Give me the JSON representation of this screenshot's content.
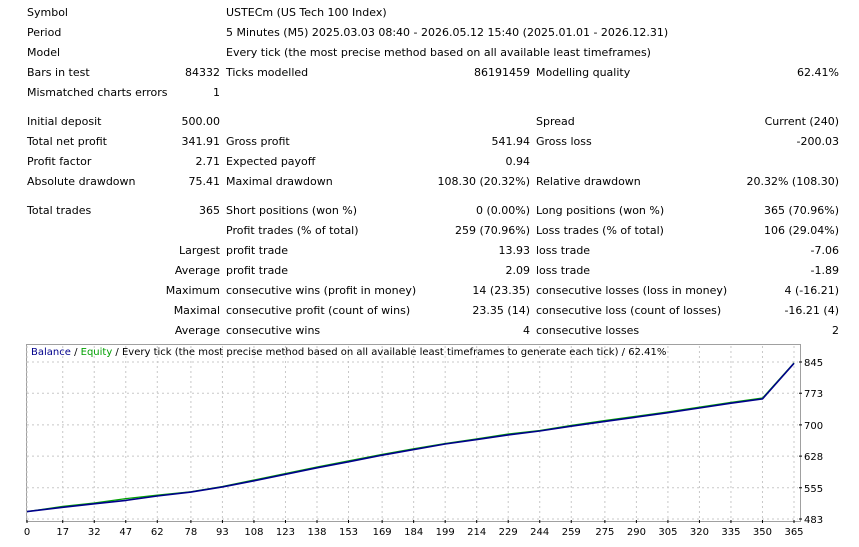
{
  "report": {
    "symbol": {
      "label": "Symbol",
      "value": "USTECm (US Tech 100 Index)"
    },
    "period": {
      "label": "Period",
      "value": "5 Minutes (M5) 2025.03.03 08:40 - 2026.05.12 15:40 (2025.01.01 - 2026.12.31)"
    },
    "model": {
      "label": "Model",
      "value": "Every tick (the most precise method based on all available least timeframes)"
    },
    "bars": {
      "label": "Bars in test",
      "value": "84332"
    },
    "ticks": {
      "label": "Ticks modelled",
      "value": "86191459"
    },
    "quality": {
      "label": "Modelling quality",
      "value": "62.41%"
    },
    "mismatched": {
      "label": "Mismatched charts errors",
      "value": "1"
    },
    "initial_deposit": {
      "label": "Initial deposit",
      "value": "500.00"
    },
    "spread": {
      "label": "Spread",
      "value": "Current (240)"
    },
    "total_net_profit": {
      "label": "Total net profit",
      "value": "341.91"
    },
    "gross_profit": {
      "label": "Gross profit",
      "value": "541.94"
    },
    "gross_loss": {
      "label": "Gross loss",
      "value": "-200.03"
    },
    "profit_factor": {
      "label": "Profit factor",
      "value": "2.71"
    },
    "expected_payoff": {
      "label": "Expected payoff",
      "value": "0.94"
    },
    "absolute_drawdown": {
      "label": "Absolute drawdown",
      "value": "75.41"
    },
    "maximal_drawdown": {
      "label": "Maximal drawdown",
      "value": "108.30 (20.32%)"
    },
    "relative_drawdown": {
      "label": "Relative drawdown",
      "value": "20.32% (108.30)"
    },
    "total_trades": {
      "label": "Total trades",
      "value": "365"
    },
    "short_positions": {
      "label": "Short positions (won %)",
      "value": "0 (0.00%)"
    },
    "long_positions": {
      "label": "Long positions (won %)",
      "value": "365 (70.96%)"
    },
    "profit_trades": {
      "label": "Profit trades (% of total)",
      "value": "259 (70.96%)"
    },
    "loss_trades": {
      "label": "Loss trades (% of total)",
      "value": "106 (29.04%)"
    },
    "largest": {
      "prefix": "Largest",
      "profit_label": "profit trade",
      "profit_value": "13.93",
      "loss_label": "loss trade",
      "loss_value": "-7.06"
    },
    "average": {
      "prefix": "Average",
      "profit_label": "profit trade",
      "profit_value": "2.09",
      "loss_label": "loss trade",
      "loss_value": "-1.89"
    },
    "maximum": {
      "prefix": "Maximum",
      "wins_label": "consecutive wins (profit in money)",
      "wins_value": "14 (23.35)",
      "losses_label": "consecutive losses (loss in money)",
      "losses_value": "4 (-16.21)"
    },
    "maximal": {
      "prefix": "Maximal",
      "profit_label": "consecutive profit (count of wins)",
      "profit_value": "23.35 (14)",
      "loss_label": "consecutive loss (count of losses)",
      "loss_value": "-16.21 (4)"
    },
    "average_consec": {
      "prefix": "Average",
      "wins_label": "consecutive wins",
      "wins_value": "4",
      "losses_label": "consecutive losses",
      "losses_value": "2"
    }
  },
  "chart_legend": {
    "balance": "Balance",
    "sep": " / ",
    "equity": "Equity",
    "rest": " / Every tick (the most precise method based on all available least timeframes to generate each tick) / 62.41%"
  },
  "colors": {
    "balance": "#00008b",
    "equity": "#00a000",
    "grid": "#c8c8c8"
  },
  "chart_data": {
    "type": "line",
    "x_ticks": [
      "0",
      "17",
      "32",
      "47",
      "62",
      "78",
      "93",
      "108",
      "123",
      "138",
      "153",
      "169",
      "184",
      "199",
      "214",
      "229",
      "244",
      "259",
      "275",
      "290",
      "305",
      "320",
      "335",
      "350",
      "365"
    ],
    "y_ticks": [
      "845",
      "773",
      "700",
      "628",
      "555",
      "483"
    ],
    "ylim": [
      483,
      845
    ],
    "xlim": [
      0,
      365
    ],
    "grid": true,
    "series": [
      {
        "name": "Balance",
        "x": [
          0,
          17,
          32,
          47,
          62,
          78,
          93,
          108,
          123,
          138,
          153,
          169,
          184,
          199,
          214,
          229,
          244,
          259,
          275,
          290,
          305,
          320,
          335,
          350,
          365
        ],
        "values": [
          500,
          510,
          518,
          526,
          536,
          545,
          557,
          571,
          586,
          601,
          615,
          630,
          643,
          656,
          666,
          677,
          686,
          697,
          708,
          718,
          728,
          739,
          750,
          760,
          842
        ]
      },
      {
        "name": "Equity",
        "x": [
          0,
          17,
          32,
          47,
          62,
          78,
          93,
          108,
          123,
          138,
          153,
          169,
          184,
          199,
          214,
          229,
          244,
          259,
          275,
          290,
          305,
          320,
          335,
          350,
          365
        ],
        "values": [
          500,
          512,
          520,
          530,
          538,
          546,
          558,
          573,
          588,
          603,
          617,
          632,
          645,
          657,
          668,
          679,
          687,
          699,
          710,
          720,
          730,
          741,
          752,
          762,
          843
        ]
      }
    ]
  }
}
